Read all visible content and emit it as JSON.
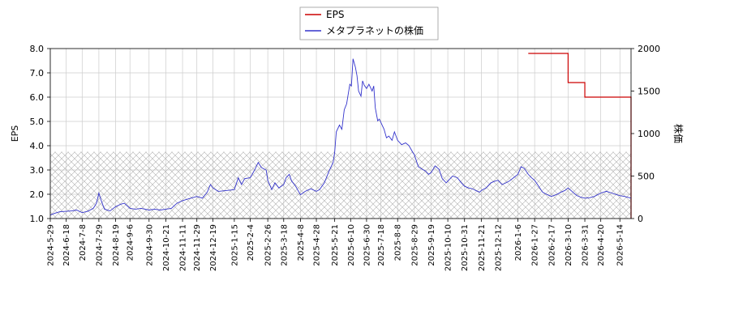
{
  "chart_data": {
    "type": "line",
    "legend": {
      "placement": "top-center",
      "entries": [
        {
          "label": "EPS",
          "color": "#cc0000"
        },
        {
          "label": "メタプラネットの株価",
          "color": "#3333cc"
        }
      ]
    },
    "axes": {
      "left": {
        "label": "EPS",
        "ylim": [
          1.0,
          8.0
        ],
        "ticks": [
          "1.0",
          "2.0",
          "3.0",
          "4.0",
          "5.0",
          "6.0",
          "7.0",
          "8.0"
        ]
      },
      "right": {
        "label": "株価",
        "ylim": [
          0,
          2000
        ],
        "ticks": [
          "0",
          "500",
          "1000",
          "1500",
          "2000"
        ]
      },
      "x": {
        "start": "2024-05-29",
        "end": "2026-05-28",
        "ticks": [
          "2024-5-29",
          "2024-6-18",
          "2024-7-8",
          "2024-7-29",
          "2024-8-19",
          "2024-9-6",
          "2024-9-30",
          "2024-10-21",
          "2024-11-11",
          "2024-11-29",
          "2024-12-19",
          "2025-1-15",
          "2025-2-4",
          "2025-2-26",
          "2025-3-18",
          "2025-4-8",
          "2025-4-28",
          "2025-5-21",
          "2025-6-10",
          "2025-6-30",
          "2025-7-18",
          "2025-8-8",
          "2025-8-29",
          "2025-9-19",
          "2025-10-10",
          "2025-10-31",
          "2025-11-21",
          "2025-12-12",
          "2026-1-6",
          "2026-1-27",
          "2026-2-17",
          "2026-3-10",
          "2026-3-31",
          "2026-4-20",
          "2026-5-14"
        ]
      }
    },
    "grid": true,
    "hatched_band": {
      "y_from": 0,
      "y_to": 3.75,
      "axis": "left"
    },
    "series": [
      {
        "name": "EPS",
        "axis": "left",
        "color": "#cc0000",
        "step": true,
        "points": [
          [
            "2026-01-19",
            7.8
          ],
          [
            "2026-03-10",
            6.6
          ],
          [
            "2026-03-31",
            6.0
          ],
          [
            "2026-05-28",
            6.0
          ]
        ],
        "drop_to": [
          "2026-05-28",
          1.0
        ]
      },
      {
        "name": "メタプラネットの株価",
        "axis": "right",
        "color": "#3333cc",
        "points": [
          [
            "2024-05-29",
            40
          ],
          [
            "2024-06-03",
            60
          ],
          [
            "2024-06-10",
            80
          ],
          [
            "2024-06-18",
            85
          ],
          [
            "2024-06-25",
            90
          ],
          [
            "2024-07-01",
            100
          ],
          [
            "2024-07-08",
            70
          ],
          [
            "2024-07-15",
            85
          ],
          [
            "2024-07-22",
            120
          ],
          [
            "2024-07-26",
            180
          ],
          [
            "2024-07-29",
            300
          ],
          [
            "2024-08-01",
            210
          ],
          [
            "2024-08-05",
            110
          ],
          [
            "2024-08-12",
            90
          ],
          [
            "2024-08-19",
            140
          ],
          [
            "2024-08-26",
            170
          ],
          [
            "2024-08-30",
            180
          ],
          [
            "2024-09-06",
            120
          ],
          [
            "2024-09-13",
            110
          ],
          [
            "2024-09-20",
            120
          ],
          [
            "2024-09-30",
            100
          ],
          [
            "2024-10-07",
            110
          ],
          [
            "2024-10-14",
            100
          ],
          [
            "2024-10-21",
            110
          ],
          [
            "2024-10-28",
            120
          ],
          [
            "2024-11-04",
            180
          ],
          [
            "2024-11-11",
            210
          ],
          [
            "2024-11-18",
            230
          ],
          [
            "2024-11-29",
            260
          ],
          [
            "2024-12-06",
            240
          ],
          [
            "2024-12-12",
            310
          ],
          [
            "2024-12-16",
            400
          ],
          [
            "2024-12-19",
            360
          ],
          [
            "2024-12-26",
            320
          ],
          [
            "2025-01-06",
            330
          ],
          [
            "2025-01-15",
            340
          ],
          [
            "2025-01-20",
            480
          ],
          [
            "2025-01-24",
            400
          ],
          [
            "2025-01-28",
            470
          ],
          [
            "2025-02-04",
            480
          ],
          [
            "2025-02-10",
            580
          ],
          [
            "2025-02-14",
            660
          ],
          [
            "2025-02-18",
            600
          ],
          [
            "2025-02-24",
            570
          ],
          [
            "2025-02-26",
            450
          ],
          [
            "2025-03-03",
            340
          ],
          [
            "2025-03-07",
            420
          ],
          [
            "2025-03-12",
            360
          ],
          [
            "2025-03-18",
            400
          ],
          [
            "2025-03-21",
            480
          ],
          [
            "2025-03-25",
            520
          ],
          [
            "2025-03-28",
            440
          ],
          [
            "2025-04-02",
            380
          ],
          [
            "2025-04-08",
            280
          ],
          [
            "2025-04-14",
            320
          ],
          [
            "2025-04-21",
            350
          ],
          [
            "2025-04-28",
            320
          ],
          [
            "2025-05-02",
            340
          ],
          [
            "2025-05-08",
            420
          ],
          [
            "2025-05-14",
            560
          ],
          [
            "2025-05-19",
            660
          ],
          [
            "2025-05-21",
            780
          ],
          [
            "2025-05-23",
            1020
          ],
          [
            "2025-05-27",
            1100
          ],
          [
            "2025-05-30",
            1050
          ],
          [
            "2025-06-02",
            1280
          ],
          [
            "2025-06-05",
            1350
          ],
          [
            "2025-06-09",
            1580
          ],
          [
            "2025-06-11",
            1560
          ],
          [
            "2025-06-13",
            1880
          ],
          [
            "2025-06-16",
            1780
          ],
          [
            "2025-06-18",
            1680
          ],
          [
            "2025-06-20",
            1500
          ],
          [
            "2025-06-23",
            1440
          ],
          [
            "2025-06-25",
            1620
          ],
          [
            "2025-06-27",
            1570
          ],
          [
            "2025-06-30",
            1530
          ],
          [
            "2025-07-03",
            1580
          ],
          [
            "2025-07-07",
            1500
          ],
          [
            "2025-07-09",
            1560
          ],
          [
            "2025-07-11",
            1300
          ],
          [
            "2025-07-14",
            1150
          ],
          [
            "2025-07-16",
            1170
          ],
          [
            "2025-07-18",
            1130
          ],
          [
            "2025-07-22",
            1050
          ],
          [
            "2025-07-25",
            950
          ],
          [
            "2025-07-28",
            970
          ],
          [
            "2025-08-01",
            920
          ],
          [
            "2025-08-04",
            1020
          ],
          [
            "2025-08-08",
            920
          ],
          [
            "2025-08-13",
            870
          ],
          [
            "2025-08-18",
            890
          ],
          [
            "2025-08-22",
            860
          ],
          [
            "2025-08-27",
            780
          ],
          [
            "2025-08-29",
            750
          ],
          [
            "2025-09-03",
            610
          ],
          [
            "2025-09-08",
            580
          ],
          [
            "2025-09-12",
            560
          ],
          [
            "2025-09-16",
            520
          ],
          [
            "2025-09-19",
            540
          ],
          [
            "2025-09-24",
            620
          ],
          [
            "2025-09-29",
            580
          ],
          [
            "2025-10-03",
            470
          ],
          [
            "2025-10-08",
            420
          ],
          [
            "2025-10-10",
            440
          ],
          [
            "2025-10-16",
            500
          ],
          [
            "2025-10-22",
            480
          ],
          [
            "2025-10-27",
            420
          ],
          [
            "2025-10-31",
            380
          ],
          [
            "2025-11-05",
            360
          ],
          [
            "2025-11-10",
            350
          ],
          [
            "2025-11-14",
            330
          ],
          [
            "2025-11-19",
            310
          ],
          [
            "2025-11-21",
            330
          ],
          [
            "2025-11-27",
            360
          ],
          [
            "2025-12-03",
            420
          ],
          [
            "2025-12-08",
            440
          ],
          [
            "2025-12-12",
            450
          ],
          [
            "2025-12-17",
            400
          ],
          [
            "2025-12-22",
            420
          ],
          [
            "2025-12-26",
            440
          ],
          [
            "2026-01-06",
            520
          ],
          [
            "2026-01-10",
            610
          ],
          [
            "2026-01-14",
            590
          ],
          [
            "2026-01-19",
            520
          ],
          [
            "2026-01-23",
            480
          ],
          [
            "2026-01-27",
            450
          ],
          [
            "2026-02-01",
            380
          ],
          [
            "2026-02-06",
            310
          ],
          [
            "2026-02-12",
            280
          ],
          [
            "2026-02-17",
            260
          ],
          [
            "2026-02-23",
            280
          ],
          [
            "2026-03-01",
            310
          ],
          [
            "2026-03-06",
            330
          ],
          [
            "2026-03-10",
            360
          ],
          [
            "2026-03-16",
            310
          ],
          [
            "2026-03-21",
            270
          ],
          [
            "2026-03-26",
            250
          ],
          [
            "2026-03-31",
            240
          ],
          [
            "2026-04-06",
            245
          ],
          [
            "2026-04-12",
            260
          ],
          [
            "2026-04-20",
            300
          ],
          [
            "2026-04-27",
            320
          ],
          [
            "2026-05-04",
            300
          ],
          [
            "2026-05-10",
            280
          ],
          [
            "2026-05-14",
            270
          ],
          [
            "2026-05-20",
            260
          ],
          [
            "2026-05-28",
            240
          ]
        ]
      }
    ]
  }
}
